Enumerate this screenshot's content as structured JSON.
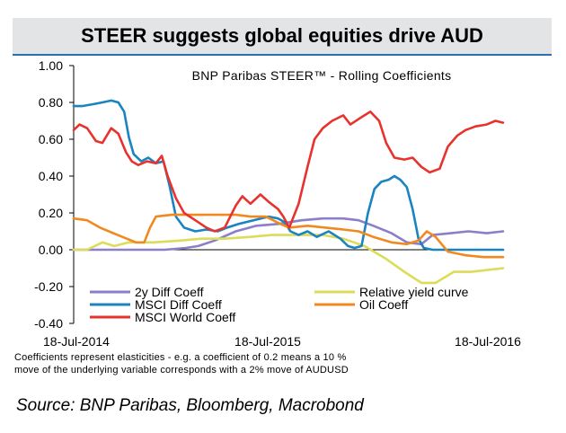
{
  "title": "STEER suggests global equities drive AUD",
  "chart_title": "BNP Paribas STEER™ - Rolling Coefficients",
  "footnote": {
    "line1": "Coefficients represent elasticities - e.g. a coefficient of 0.2 means a 10 %",
    "line2": "move of the underlying variable corresponds with a 2% move of AUDUSD"
  },
  "source": "Source:  BNP Paribas, Bloomberg, Macrobond",
  "colors": {
    "title_band": "#e2e4e6",
    "rule": "#2b6fb3"
  },
  "chart_data": {
    "type": "line",
    "title": "BNP Paribas STEER™ - Rolling Coefficients",
    "x_range": [
      "2014-07-18",
      "2016-07-18"
    ],
    "x_ticks": [
      "18-Jul-2014",
      "18-Jul-2015",
      "18-Jul-2016"
    ],
    "y_ticks": [
      "1.00",
      "0.80",
      "0.60",
      "0.40",
      "0.20",
      "0.00",
      "-0.20",
      "-0.40"
    ],
    "ylim": [
      -0.4,
      1.0
    ],
    "grid": false,
    "legend_position": "bottom-left",
    "series": [
      {
        "name": "2y Diff Coeff",
        "color": "#8a7fc8",
        "points": [
          [
            "2014-07-18",
            0.0
          ],
          [
            "2014-09-10",
            0.0
          ],
          [
            "2014-11-01",
            0.0
          ],
          [
            "2014-12-20",
            0.0
          ],
          [
            "2015-01-25",
            0.01
          ],
          [
            "2015-02-15",
            0.02
          ],
          [
            "2015-03-15",
            0.05
          ],
          [
            "2015-04-20",
            0.1
          ],
          [
            "2015-05-25",
            0.13
          ],
          [
            "2015-07-01",
            0.14
          ],
          [
            "2015-08-10",
            0.16
          ],
          [
            "2015-09-15",
            0.17
          ],
          [
            "2015-10-20",
            0.17
          ],
          [
            "2015-11-15",
            0.16
          ],
          [
            "2015-12-10",
            0.13
          ],
          [
            "2016-01-10",
            0.09
          ],
          [
            "2016-02-05",
            0.04
          ],
          [
            "2016-03-01",
            0.03
          ],
          [
            "2016-03-20",
            0.08
          ],
          [
            "2016-04-20",
            0.09
          ],
          [
            "2016-05-20",
            0.1
          ],
          [
            "2016-06-20",
            0.09
          ],
          [
            "2016-07-18",
            0.1
          ]
        ]
      },
      {
        "name": "Relative yield curve",
        "color": "#dcdc5a",
        "points": [
          [
            "2014-07-18",
            0.0
          ],
          [
            "2014-08-10",
            0.0
          ],
          [
            "2014-09-05",
            0.04
          ],
          [
            "2014-09-25",
            0.02
          ],
          [
            "2014-10-20",
            0.04
          ],
          [
            "2014-12-01",
            0.04
          ],
          [
            "2015-01-15",
            0.05
          ],
          [
            "2015-02-20",
            0.06
          ],
          [
            "2015-04-01",
            0.06
          ],
          [
            "2015-05-15",
            0.07
          ],
          [
            "2015-06-20",
            0.08
          ],
          [
            "2015-08-01",
            0.08
          ],
          [
            "2015-09-15",
            0.08
          ],
          [
            "2015-10-20",
            0.06
          ],
          [
            "2015-11-25",
            0.02
          ],
          [
            "2016-01-01",
            -0.05
          ],
          [
            "2016-02-01",
            -0.12
          ],
          [
            "2016-03-01",
            -0.18
          ],
          [
            "2016-03-25",
            -0.18
          ],
          [
            "2016-04-25",
            -0.12
          ],
          [
            "2016-05-25",
            -0.12
          ],
          [
            "2016-07-18",
            -0.1
          ]
        ]
      },
      {
        "name": "MSCI Diff Coeff",
        "color": "#1a84c0",
        "points": [
          [
            "2014-07-18",
            0.78
          ],
          [
            "2014-08-01",
            0.78
          ],
          [
            "2014-08-20",
            0.79
          ],
          [
            "2014-09-05",
            0.8
          ],
          [
            "2014-09-20",
            0.81
          ],
          [
            "2014-10-02",
            0.8
          ],
          [
            "2014-10-12",
            0.75
          ],
          [
            "2014-10-20",
            0.61
          ],
          [
            "2014-10-28",
            0.52
          ],
          [
            "2014-11-10",
            0.48
          ],
          [
            "2014-11-22",
            0.5
          ],
          [
            "2014-12-05",
            0.47
          ],
          [
            "2014-12-18",
            0.48
          ],
          [
            "2014-12-28",
            0.35
          ],
          [
            "2015-01-08",
            0.18
          ],
          [
            "2015-01-22",
            0.12
          ],
          [
            "2015-02-10",
            0.1
          ],
          [
            "2015-03-01",
            0.11
          ],
          [
            "2015-03-20",
            0.1
          ],
          [
            "2015-04-05",
            0.12
          ],
          [
            "2015-04-25",
            0.14
          ],
          [
            "2015-05-20",
            0.16
          ],
          [
            "2015-06-15",
            0.18
          ],
          [
            "2015-07-01",
            0.17
          ],
          [
            "2015-07-12",
            0.15
          ],
          [
            "2015-07-22",
            0.1
          ],
          [
            "2015-08-05",
            0.08
          ],
          [
            "2015-08-20",
            0.1
          ],
          [
            "2015-09-05",
            0.07
          ],
          [
            "2015-09-25",
            0.1
          ],
          [
            "2015-10-15",
            0.06
          ],
          [
            "2015-10-28",
            0.02
          ],
          [
            "2015-11-08",
            0.01
          ],
          [
            "2015-11-20",
            0.02
          ],
          [
            "2015-12-01",
            0.2
          ],
          [
            "2015-12-12",
            0.33
          ],
          [
            "2015-12-24",
            0.37
          ],
          [
            "2016-01-05",
            0.38
          ],
          [
            "2016-01-15",
            0.4
          ],
          [
            "2016-01-25",
            0.38
          ],
          [
            "2016-02-05",
            0.34
          ],
          [
            "2016-02-15",
            0.22
          ],
          [
            "2016-02-25",
            0.06
          ],
          [
            "2016-03-05",
            0.01
          ],
          [
            "2016-03-20",
            0.0
          ],
          [
            "2016-05-01",
            0.0
          ],
          [
            "2016-07-18",
            0.0
          ]
        ]
      },
      {
        "name": "Oil Coeff",
        "color": "#f08a20",
        "points": [
          [
            "2014-07-18",
            0.17
          ],
          [
            "2014-08-10",
            0.16
          ],
          [
            "2014-09-01",
            0.12
          ],
          [
            "2014-10-01",
            0.08
          ],
          [
            "2014-11-01",
            0.04
          ],
          [
            "2014-11-15",
            0.04
          ],
          [
            "2014-11-25",
            0.12
          ],
          [
            "2014-12-05",
            0.18
          ],
          [
            "2015-01-01",
            0.19
          ],
          [
            "2015-02-10",
            0.19
          ],
          [
            "2015-03-20",
            0.19
          ],
          [
            "2015-04-20",
            0.19
          ],
          [
            "2015-05-15",
            0.18
          ],
          [
            "2015-06-10",
            0.18
          ],
          [
            "2015-07-05",
            0.14
          ],
          [
            "2015-07-20",
            0.12
          ],
          [
            "2015-08-20",
            0.13
          ],
          [
            "2015-09-20",
            0.12
          ],
          [
            "2015-10-20",
            0.11
          ],
          [
            "2015-11-15",
            0.1
          ],
          [
            "2015-12-10",
            0.07
          ],
          [
            "2016-01-10",
            0.04
          ],
          [
            "2016-02-05",
            0.03
          ],
          [
            "2016-02-25",
            0.05
          ],
          [
            "2016-03-10",
            0.1
          ],
          [
            "2016-03-25",
            0.07
          ],
          [
            "2016-04-15",
            -0.01
          ],
          [
            "2016-05-15",
            -0.03
          ],
          [
            "2016-06-15",
            -0.04
          ],
          [
            "2016-07-18",
            -0.04
          ]
        ]
      },
      {
        "name": "MSCI World Coeff",
        "color": "#e8322d",
        "points": [
          [
            "2014-07-18",
            0.65
          ],
          [
            "2014-07-28",
            0.68
          ],
          [
            "2014-08-10",
            0.66
          ],
          [
            "2014-08-25",
            0.59
          ],
          [
            "2014-09-05",
            0.58
          ],
          [
            "2014-09-20",
            0.66
          ],
          [
            "2014-10-02",
            0.63
          ],
          [
            "2014-10-15",
            0.53
          ],
          [
            "2014-10-25",
            0.48
          ],
          [
            "2014-11-05",
            0.46
          ],
          [
            "2014-11-20",
            0.48
          ],
          [
            "2014-12-05",
            0.47
          ],
          [
            "2014-12-15",
            0.51
          ],
          [
            "2014-12-25",
            0.4
          ],
          [
            "2015-01-08",
            0.28
          ],
          [
            "2015-01-22",
            0.2
          ],
          [
            "2015-02-10",
            0.16
          ],
          [
            "2015-03-01",
            0.12
          ],
          [
            "2015-03-15",
            0.1
          ],
          [
            "2015-04-01",
            0.12
          ],
          [
            "2015-04-20",
            0.24
          ],
          [
            "2015-05-01",
            0.29
          ],
          [
            "2015-05-15",
            0.25
          ],
          [
            "2015-06-01",
            0.3
          ],
          [
            "2015-06-15",
            0.26
          ],
          [
            "2015-07-01",
            0.22
          ],
          [
            "2015-07-10",
            0.18
          ],
          [
            "2015-07-20",
            0.12
          ],
          [
            "2015-08-05",
            0.25
          ],
          [
            "2015-08-20",
            0.45
          ],
          [
            "2015-09-01",
            0.6
          ],
          [
            "2015-09-15",
            0.66
          ],
          [
            "2015-10-01",
            0.7
          ],
          [
            "2015-10-20",
            0.73
          ],
          [
            "2015-11-01",
            0.68
          ],
          [
            "2015-11-20",
            0.72
          ],
          [
            "2015-12-05",
            0.75
          ],
          [
            "2015-12-20",
            0.7
          ],
          [
            "2016-01-01",
            0.58
          ],
          [
            "2016-01-15",
            0.5
          ],
          [
            "2016-02-01",
            0.49
          ],
          [
            "2016-02-15",
            0.5
          ],
          [
            "2016-03-01",
            0.45
          ],
          [
            "2016-03-15",
            0.42
          ],
          [
            "2016-04-01",
            0.44
          ],
          [
            "2016-04-15",
            0.56
          ],
          [
            "2016-05-01",
            0.62
          ],
          [
            "2016-05-15",
            0.65
          ],
          [
            "2016-06-01",
            0.67
          ],
          [
            "2016-06-20",
            0.68
          ],
          [
            "2016-07-05",
            0.7
          ],
          [
            "2016-07-18",
            0.69
          ]
        ]
      }
    ]
  }
}
